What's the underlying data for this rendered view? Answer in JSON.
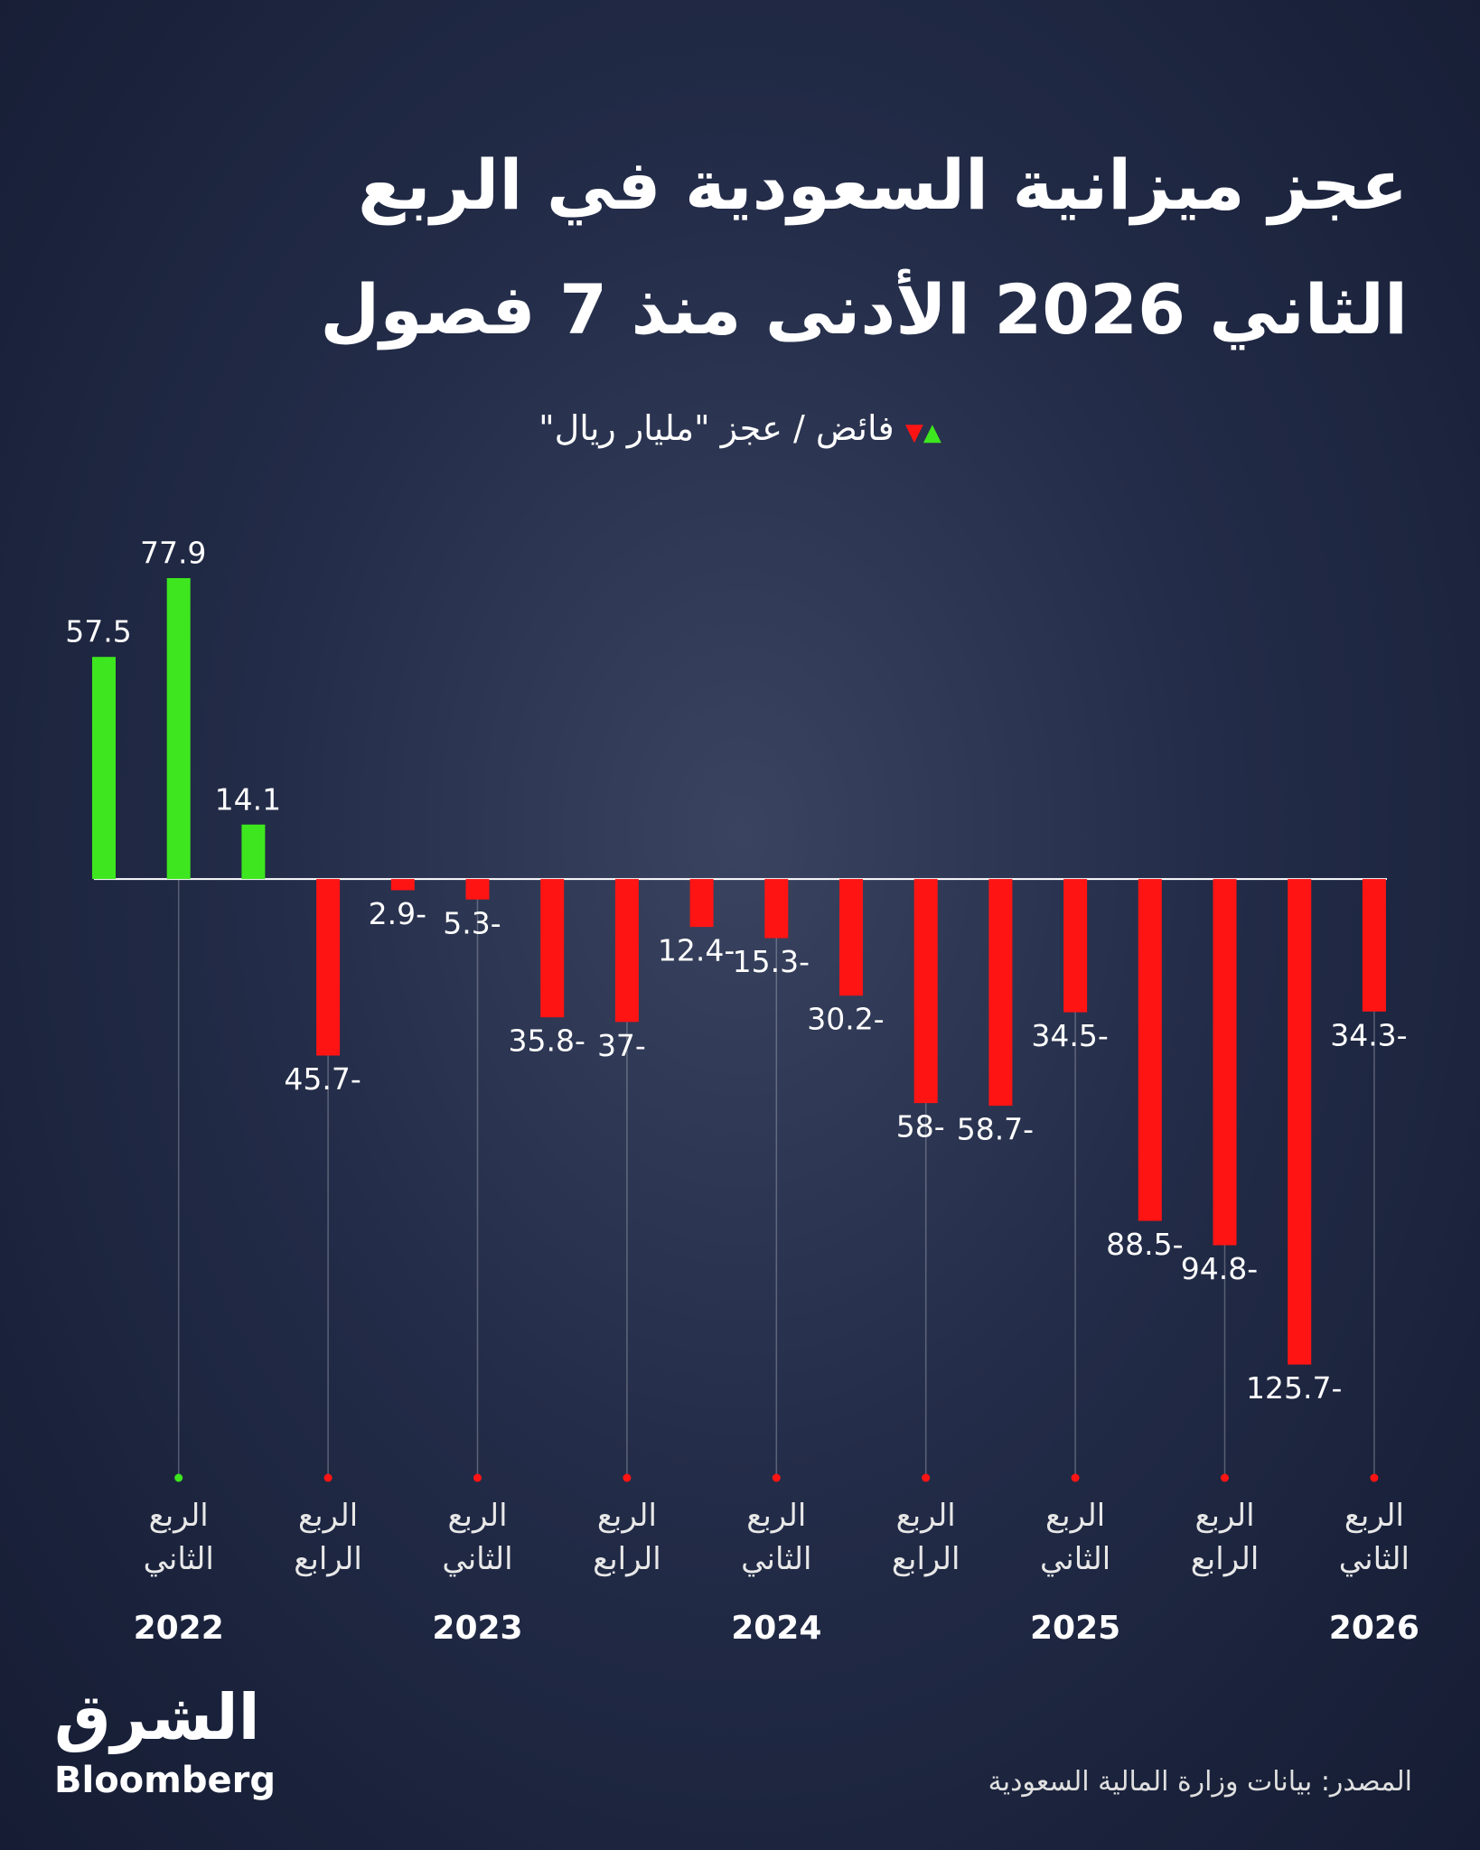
{
  "chart_data": {
    "type": "bar",
    "title": [
      "عجز ميزانية السعودية في الربع",
      "الثاني 2026 الأدنى منذ 7 فصول"
    ],
    "legend": "فائض / عجز \"مليار ريال\"",
    "categories": [
      null,
      "الربع الثاني",
      null,
      "الربع الرابع",
      null,
      "الربع الثاني",
      null,
      "الربع الرابع",
      null,
      "الربع الثاني",
      null,
      "الربع الرابع",
      null,
      "الربع الثاني",
      null,
      "الربع الرابع",
      null,
      "الربع الثاني"
    ],
    "years": [
      null,
      "2022",
      null,
      null,
      null,
      "2023",
      null,
      null,
      null,
      "2024",
      null,
      null,
      null,
      "2025",
      null,
      null,
      null,
      "2026"
    ],
    "values": [
      57.5,
      77.9,
      14.1,
      -45.7,
      -2.9,
      -5.3,
      -35.8,
      -37,
      -12.4,
      -15.3,
      -30.2,
      -58,
      -58.7,
      -34.5,
      -88.5,
      -94.8,
      -125.7,
      -34.3
    ],
    "value_labels": [
      "57.5",
      "77.9",
      "14.1",
      "45.7-",
      "2.9-",
      "5.3-",
      "35.8-",
      "37-",
      "12.4-",
      "15.3-",
      "30.2-",
      "58-",
      "58.7-",
      "34.5-",
      "88.5-",
      "94.8-",
      "125.7-",
      "34.3-"
    ],
    "positive_color": "#3ee61f",
    "negative_color": "#ff1414",
    "ylim": [
      -130,
      80
    ],
    "source": "المصدر: بيانات وزارة المالية السعودية"
  },
  "brand": {
    "arabic": "الشرق",
    "english": "Bloomberg"
  }
}
